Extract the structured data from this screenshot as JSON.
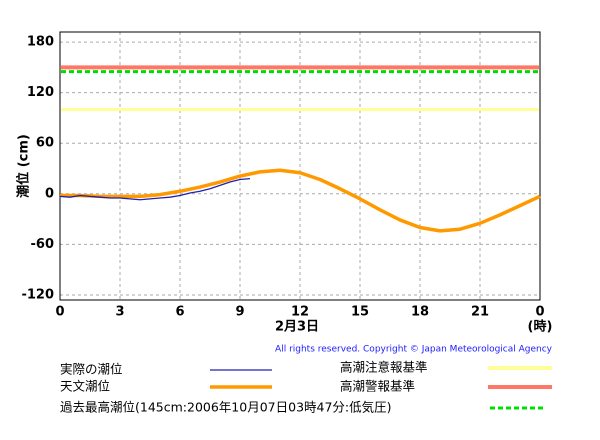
{
  "chart_data": {
    "type": "line",
    "ylabel": "潮位 (cm)",
    "xlabel": "2月3日",
    "xunit": "(時)",
    "copyright": "All rights reserved. Copyright © Japan Meteorological Agency",
    "xlim": [
      0,
      24
    ],
    "ylim": [
      -126,
      192
    ],
    "xticks": [
      0,
      3,
      6,
      9,
      12,
      15,
      18,
      21,
      {
        "value": 24,
        "label": "0"
      }
    ],
    "yticks": [
      180,
      120,
      60,
      0,
      -60,
      -120
    ],
    "grid": true,
    "series": [
      {
        "name": "実際の潮位",
        "color": "#2020b0",
        "x": [
          0,
          0.5,
          1,
          1.5,
          2,
          2.5,
          3,
          3.5,
          4,
          4.5,
          5,
          5.5,
          6,
          6.5,
          7,
          7.5,
          8,
          8.5,
          9,
          9.5
        ],
        "values": [
          -3,
          -4,
          -2,
          -3,
          -4,
          -5,
          -5,
          -6,
          -7,
          -6,
          -5,
          -4,
          -2,
          1,
          3,
          6,
          10,
          14,
          17,
          18
        ]
      },
      {
        "name": "天文潮位",
        "color": "#ff9900",
        "x": [
          0,
          1,
          2,
          3,
          4,
          5,
          6,
          7,
          8,
          9,
          10,
          11,
          12,
          13,
          14,
          15,
          16,
          17,
          18,
          19,
          20,
          21,
          22,
          23,
          24
        ],
        "values": [
          -2,
          -2,
          -3,
          -3,
          -3,
          -1,
          3,
          8,
          14,
          21,
          26,
          28,
          25,
          17,
          6,
          -6,
          -19,
          -31,
          -40,
          -44,
          -42,
          -35,
          -25,
          -14,
          -3
        ]
      }
    ],
    "reference_lines": [
      {
        "name": "高潮注意報基準",
        "color": "#ffff99",
        "value": 100,
        "style": "solid"
      },
      {
        "name": "高潮警報基準",
        "color": "#ff7766",
        "value": 150,
        "style": "solid"
      },
      {
        "name": "過去最高潮位(145cm:2006年10月07日03時47分:低気圧)",
        "color": "#00dd00",
        "value": 145,
        "style": "dashed"
      }
    ]
  }
}
